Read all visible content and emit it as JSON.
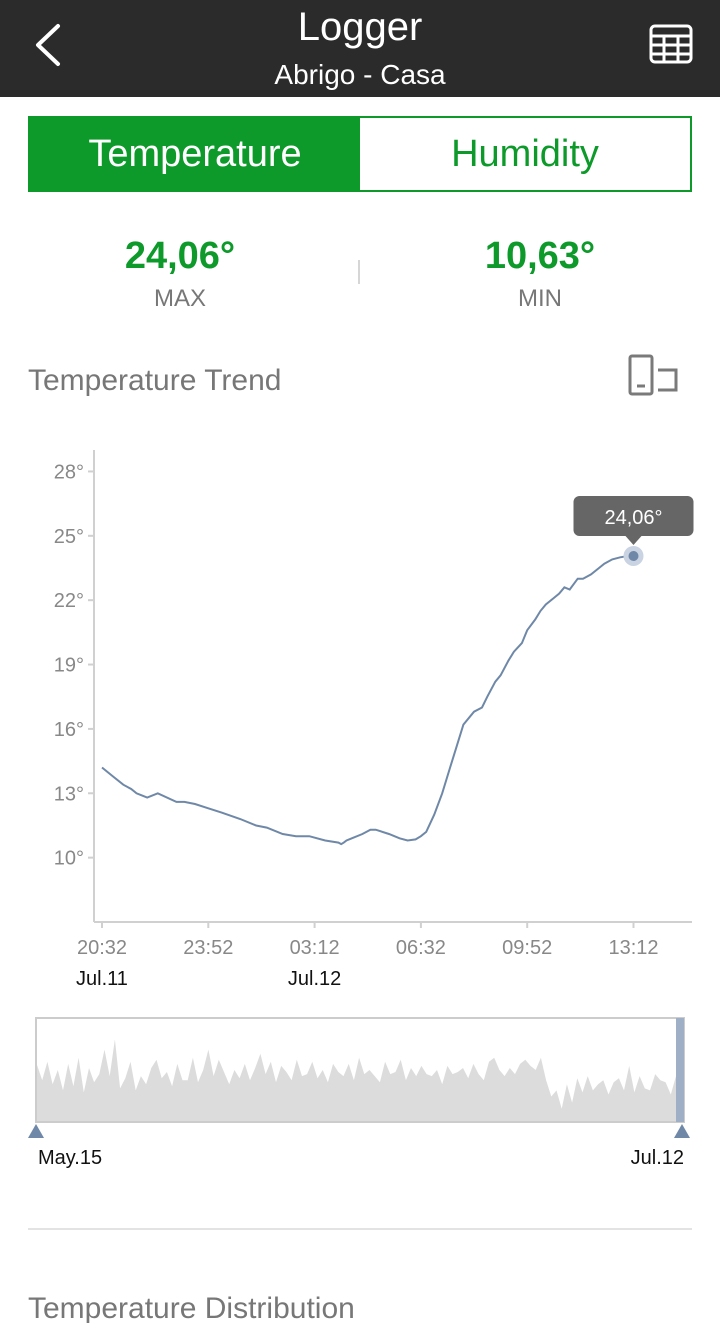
{
  "header": {
    "title": "Logger",
    "subtitle": "Abrigo - Casa",
    "back_icon": "back-chevron-icon",
    "table_icon": "table-grid-icon"
  },
  "tabs": [
    {
      "label": "Temperature",
      "active": true
    },
    {
      "label": "Humidity",
      "active": false
    }
  ],
  "stats": {
    "max_value": "24,06°",
    "max_label": "MAX",
    "min_value": "10,63°",
    "min_label": "MIN"
  },
  "trend": {
    "title": "Temperature Trend",
    "rotate_icon": "rotate-screen-icon"
  },
  "chart_data": {
    "type": "line",
    "title": "Temperature Trend",
    "xlabel": "",
    "ylabel": "",
    "y_ticks": [
      "28°",
      "25°",
      "22°",
      "19°",
      "16°",
      "13°",
      "10°"
    ],
    "y_tick_values": [
      28,
      25,
      22,
      19,
      16,
      13,
      10
    ],
    "ylim": [
      7,
      29
    ],
    "x_ticks": [
      "20:32",
      "23:52",
      "03:12",
      "06:32",
      "09:52",
      "13:12"
    ],
    "x_tick_minutes": [
      0,
      200,
      400,
      600,
      800,
      1000
    ],
    "x_date_labels": [
      {
        "label": "Jul.11",
        "minute": 0
      },
      {
        "label": "Jul.12",
        "minute": 400
      }
    ],
    "x_range_minutes": [
      0,
      1100
    ],
    "grid": false,
    "series": [
      {
        "x": [
          0,
          20,
          40,
          55,
          65,
          75,
          85,
          105,
          140,
          155,
          175,
          200,
          225,
          260,
          290,
          310,
          340,
          365,
          390,
          420,
          445,
          450,
          455,
          460,
          470,
          490,
          505,
          515,
          540,
          560,
          575,
          590,
          600,
          610,
          625,
          640,
          655,
          665,
          680,
          700,
          715,
          725,
          740,
          750,
          765,
          775,
          790,
          800,
          815,
          825,
          835,
          850,
          860,
          870,
          880,
          895,
          905,
          920,
          935,
          945,
          960,
          975,
          990,
          1000
        ],
        "y": [
          14.2,
          13.8,
          13.4,
          13.2,
          13.0,
          12.9,
          12.8,
          13.0,
          12.6,
          12.6,
          12.5,
          12.3,
          12.1,
          11.8,
          11.5,
          11.4,
          11.1,
          11.0,
          11.0,
          10.8,
          10.7,
          10.63,
          10.7,
          10.8,
          10.9,
          11.1,
          11.3,
          11.3,
          11.1,
          10.9,
          10.8,
          10.85,
          11.0,
          11.2,
          12.0,
          13.0,
          14.2,
          15.0,
          16.2,
          16.8,
          17.0,
          17.5,
          18.2,
          18.5,
          19.2,
          19.6,
          20.0,
          20.6,
          21.1,
          21.5,
          21.8,
          22.1,
          22.3,
          22.6,
          22.5,
          23.0,
          23.0,
          23.2,
          23.5,
          23.7,
          23.9,
          24.0,
          24.06,
          24.06
        ]
      }
    ],
    "tooltip": {
      "label": "24,06°",
      "x": 1000,
      "y": 24.06
    }
  },
  "overview": {
    "start_label": "May.15",
    "end_label": "Jul.12",
    "values": [
      55,
      40,
      58,
      36,
      50,
      30,
      56,
      34,
      62,
      28,
      52,
      38,
      46,
      70,
      44,
      80,
      32,
      42,
      58,
      30,
      44,
      36,
      52,
      60,
      42,
      48,
      34,
      56,
      40,
      40,
      62,
      38,
      50,
      70,
      44,
      60,
      48,
      36,
      50,
      42,
      56,
      40,
      52,
      66,
      46,
      58,
      38,
      54,
      48,
      40,
      60,
      44,
      46,
      58,
      42,
      50,
      38,
      56,
      48,
      44,
      56,
      40,
      62,
      46,
      50,
      44,
      38,
      58,
      46,
      48,
      60,
      40,
      52,
      44,
      54,
      46,
      44,
      50,
      36,
      54,
      46,
      48,
      52,
      42,
      56,
      46,
      40,
      58,
      62,
      50,
      44,
      52,
      46,
      56,
      60,
      54,
      50,
      62,
      40,
      24,
      30,
      12,
      36,
      18,
      42,
      28,
      44,
      30,
      36,
      40,
      26,
      38,
      42,
      30,
      54,
      28,
      44,
      32,
      30,
      46,
      40,
      38,
      26,
      44
    ]
  },
  "distribution": {
    "title": "Temperature Distribution"
  },
  "colors": {
    "accent": "#0e9a2b",
    "header_bg": "#2b2b2b",
    "line": "#6f88a8",
    "tooltip_bg": "#666666",
    "overview_fill": "#dcdcdc",
    "handle": "#6f88a8"
  }
}
